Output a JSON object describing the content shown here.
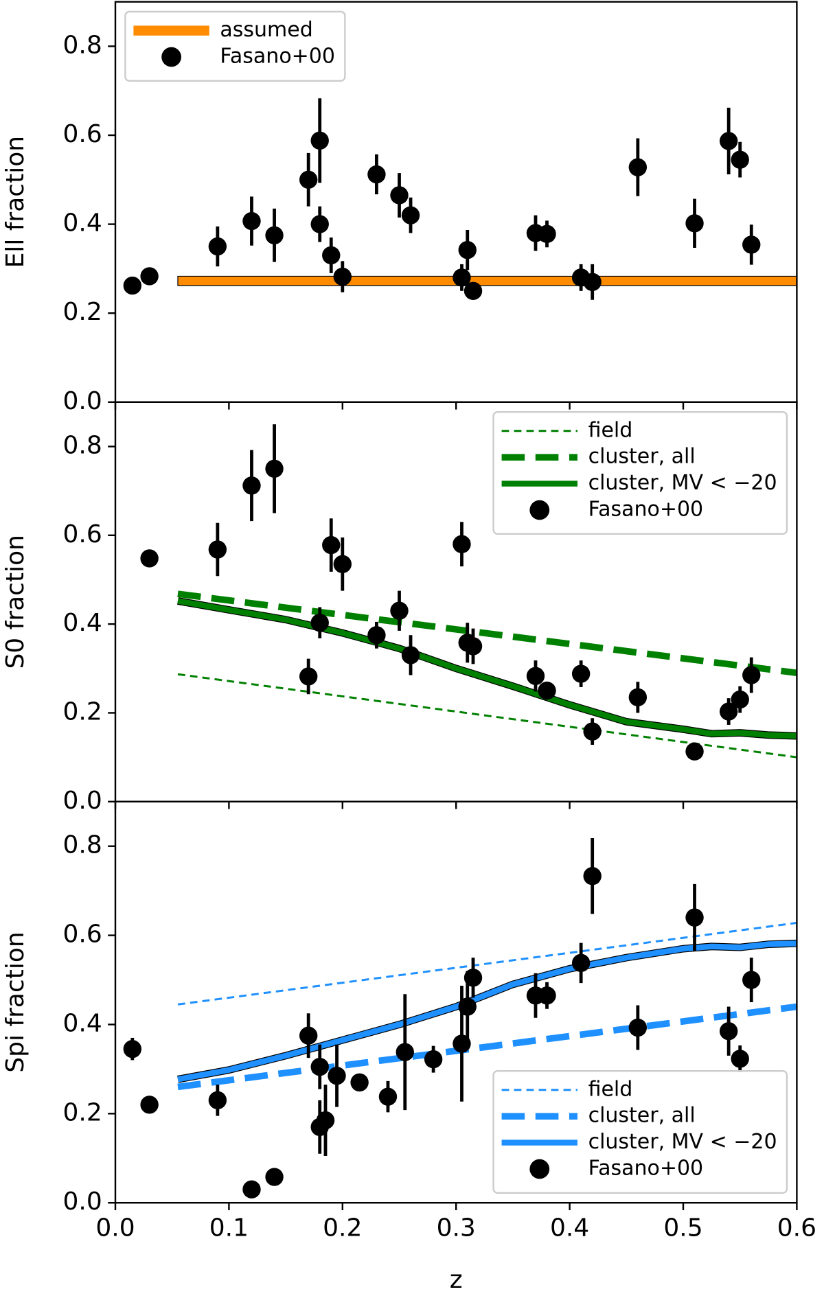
{
  "chart_data": [
    {
      "type": "scatter",
      "ylabel": "Ell fraction",
      "ylim": [
        0,
        0.9
      ],
      "yticks": [
        {
          "value": 0,
          "label": "0.0"
        },
        0.2,
        0.4,
        0.6,
        0.8
      ],
      "xlim": [
        0,
        0.6
      ],
      "legend": "upper left",
      "series": [
        {
          "name": "assumed",
          "color": "#ff8c00",
          "x": [
            0.055,
            0.6
          ],
          "lower": [
            0.262,
            0.262
          ],
          "upper": [
            0.283,
            0.283
          ]
        },
        {
          "name": "Fasano+00",
          "color": "#000000",
          "x": [
            0.015,
            0.03,
            0.09,
            0.12,
            0.14,
            0.17,
            0.18,
            0.18,
            0.19,
            0.2,
            0.23,
            0.25,
            0.26,
            0.305,
            0.31,
            0.315,
            0.37,
            0.38,
            0.41,
            0.42,
            0.46,
            0.51,
            0.54,
            0.55,
            0.56
          ],
          "values": [
            0.262,
            0.283,
            0.35,
            0.407,
            0.375,
            0.5,
            0.588,
            0.4,
            0.33,
            0.282,
            0.512,
            0.465,
            0.42,
            0.28,
            0.342,
            0.25,
            0.38,
            0.378,
            0.28,
            0.27,
            0.528,
            0.402,
            0.587,
            0.545,
            0.354
          ],
          "errors": [
            0,
            0,
            0.045,
            0.055,
            0.06,
            0.06,
            0.095,
            0.04,
            0.04,
            0.035,
            0.045,
            0.05,
            0.04,
            0.03,
            0.045,
            0,
            0.04,
            0.03,
            0.03,
            0.04,
            0.065,
            0.055,
            0.075,
            0.04,
            0.045
          ]
        }
      ]
    },
    {
      "type": "scatter",
      "ylabel": "S0 fraction",
      "ylim": [
        0,
        0.9
      ],
      "yticks": [
        {
          "value": 0,
          "label": "0.0"
        },
        0.2,
        0.4,
        0.6,
        0.8
      ],
      "xlim": [
        0,
        0.6
      ],
      "legend": "upper right",
      "series": [
        {
          "name": "field",
          "color": "#008000",
          "linestyle": "dashed",
          "x": [
            0.055,
            0.6
          ],
          "values": [
            0.287,
            0.1
          ]
        },
        {
          "name": "cluster, all",
          "color": "#008000",
          "linestyle": "dashed-thick",
          "x": [
            0.055,
            0.6
          ],
          "values": [
            0.468,
            0.29
          ]
        },
        {
          "name": "cluster, MV < −20",
          "color": "#008000",
          "linestyle": "solid",
          "x": [
            0.055,
            0.1,
            0.15,
            0.2,
            0.25,
            0.3,
            0.35,
            0.4,
            0.45,
            0.5,
            0.525,
            0.55,
            0.575,
            0.6
          ],
          "values": [
            0.452,
            0.432,
            0.41,
            0.38,
            0.345,
            0.3,
            0.26,
            0.218,
            0.18,
            0.163,
            0.153,
            0.155,
            0.15,
            0.148
          ]
        },
        {
          "name": "Fasano+00",
          "color": "#000000",
          "x": [
            0.03,
            0.09,
            0.12,
            0.14,
            0.17,
            0.18,
            0.19,
            0.2,
            0.23,
            0.25,
            0.26,
            0.305,
            0.31,
            0.315,
            0.37,
            0.38,
            0.41,
            0.42,
            0.46,
            0.51,
            0.54,
            0.55,
            0.56
          ],
          "values": [
            0.548,
            0.568,
            0.712,
            0.75,
            0.282,
            0.403,
            0.578,
            0.535,
            0.375,
            0.43,
            0.33,
            0.58,
            0.358,
            0.35,
            0.283,
            0.25,
            0.288,
            0.158,
            0.235,
            0.113,
            0.203,
            0.23,
            0.285
          ],
          "errors": [
            0,
            0.06,
            0.08,
            0.1,
            0.04,
            0.035,
            0.06,
            0.06,
            0.03,
            0.045,
            0.045,
            0.05,
            0.045,
            0.04,
            0.035,
            0.02,
            0.03,
            0.03,
            0.035,
            0,
            0.03,
            0.03,
            0.04
          ]
        }
      ]
    },
    {
      "type": "scatter",
      "ylabel": "Spi fraction",
      "xlabel": "z",
      "ylim": [
        0,
        0.9
      ],
      "yticks": [
        {
          "value": 0,
          "label": "0.0"
        },
        0.2,
        0.4,
        0.6,
        0.8
      ],
      "xlim": [
        0,
        0.6
      ],
      "xticks": [
        {
          "value": 0,
          "label": "0.0"
        },
        0.1,
        0.2,
        0.3,
        0.4,
        0.5,
        0.6
      ],
      "legend": "lower right",
      "series": [
        {
          "name": "field",
          "color": "#1e90ff",
          "linestyle": "dashed",
          "x": [
            0.055,
            0.6
          ],
          "values": [
            0.445,
            0.628
          ]
        },
        {
          "name": "cluster, all",
          "color": "#1e90ff",
          "linestyle": "dashed-thick",
          "x": [
            0.055,
            0.6
          ],
          "values": [
            0.26,
            0.44
          ]
        },
        {
          "name": "cluster, MV < −20",
          "color": "#1e90ff",
          "linestyle": "solid",
          "x": [
            0.055,
            0.1,
            0.15,
            0.2,
            0.25,
            0.3,
            0.35,
            0.4,
            0.45,
            0.5,
            0.525,
            0.55,
            0.575,
            0.6
          ],
          "values": [
            0.277,
            0.298,
            0.33,
            0.365,
            0.4,
            0.44,
            0.49,
            0.525,
            0.55,
            0.57,
            0.575,
            0.573,
            0.58,
            0.582
          ]
        },
        {
          "name": "Fasano+00",
          "color": "#000000",
          "x": [
            0.015,
            0.03,
            0.09,
            0.12,
            0.14,
            0.17,
            0.18,
            0.18,
            0.185,
            0.195,
            0.215,
            0.24,
            0.255,
            0.28,
            0.305,
            0.31,
            0.315,
            0.37,
            0.38,
            0.41,
            0.42,
            0.46,
            0.51,
            0.54,
            0.55,
            0.56
          ],
          "values": [
            0.345,
            0.22,
            0.23,
            0.03,
            0.058,
            0.375,
            0.17,
            0.305,
            0.185,
            0.285,
            0.27,
            0.238,
            0.338,
            0.322,
            0.357,
            0.44,
            0.505,
            0.465,
            0.465,
            0.538,
            0.733,
            0.393,
            0.64,
            0.385,
            0.323,
            0.5
          ],
          "errors": [
            0.025,
            0,
            0.035,
            0,
            0,
            0.05,
            0.06,
            0.05,
            0.08,
            0.07,
            0,
            0.035,
            0.13,
            0.03,
            0.13,
            0.08,
            0.045,
            0.05,
            0.03,
            0.045,
            0.085,
            0.05,
            0.075,
            0.055,
            0.03,
            0.05
          ]
        }
      ]
    }
  ]
}
